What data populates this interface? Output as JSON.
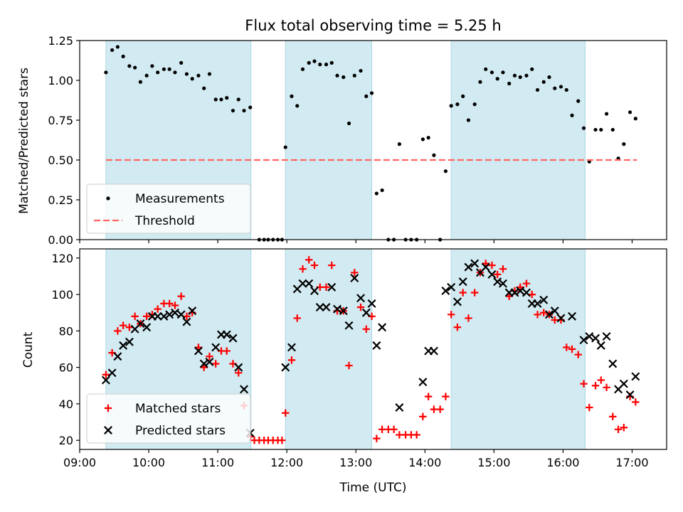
{
  "colors": {
    "band": "#add8e6",
    "measurement": "#000000",
    "threshold": "#ff6666",
    "matched": "#ff0000",
    "predicted": "#000000"
  },
  "chart_data": [
    {
      "type": "scatter",
      "title": "Flux total observing time = 5.25 h",
      "xlabel": "",
      "ylabel": "Matched/Predicted stars",
      "xlim": [
        9.0,
        17.5
      ],
      "ylim": [
        0.0,
        1.25
      ],
      "yticks": [
        0.0,
        0.25,
        0.5,
        0.75,
        1.0,
        1.25
      ],
      "ytick_labels": [
        "0.00",
        "0.25",
        "0.50",
        "0.75",
        "1.00",
        "1.25"
      ],
      "bands": [
        [
          9.38,
          11.48
        ],
        [
          11.98,
          13.23
        ],
        [
          14.38,
          16.32
        ]
      ],
      "legend": {
        "position": "lower-left",
        "entries": [
          "Measurements",
          "Threshold"
        ]
      },
      "series": [
        {
          "name": "Measurements",
          "marker": "dot",
          "x": [
            9.38,
            9.47,
            9.55,
            9.63,
            9.72,
            9.8,
            9.88,
            9.97,
            10.05,
            10.13,
            10.22,
            10.3,
            10.38,
            10.47,
            10.55,
            10.63,
            10.72,
            10.8,
            10.88,
            10.97,
            11.05,
            11.13,
            11.22,
            11.3,
            11.38,
            11.47,
            11.6,
            11.67,
            11.73,
            11.8,
            11.87,
            11.93,
            11.98,
            12.07,
            12.15,
            12.23,
            12.32,
            12.4,
            12.48,
            12.57,
            12.65,
            12.73,
            12.82,
            12.9,
            12.98,
            13.07,
            13.15,
            13.23,
            13.3,
            13.38,
            13.47,
            13.55,
            13.63,
            13.72,
            13.8,
            13.88,
            13.97,
            14.05,
            14.13,
            14.22,
            14.3,
            14.38,
            14.47,
            14.55,
            14.63,
            14.72,
            14.8,
            14.88,
            14.97,
            15.05,
            15.13,
            15.22,
            15.3,
            15.38,
            15.47,
            15.55,
            15.63,
            15.72,
            15.8,
            15.88,
            15.97,
            16.05,
            16.13,
            16.22,
            16.3,
            16.38,
            16.47,
            16.55,
            16.63,
            16.72,
            16.8,
            16.88,
            16.97,
            17.05
          ],
          "y": [
            1.05,
            1.19,
            1.21,
            1.15,
            1.09,
            1.08,
            0.99,
            1.03,
            1.09,
            1.05,
            1.07,
            1.07,
            1.05,
            1.11,
            1.04,
            1.01,
            1.03,
            0.95,
            1.04,
            0.88,
            0.88,
            0.89,
            0.81,
            0.88,
            0.81,
            0.83,
            0.0,
            0.0,
            0.0,
            0.0,
            0.0,
            0.0,
            0.58,
            0.9,
            0.84,
            1.07,
            1.11,
            1.12,
            1.1,
            1.1,
            1.11,
            1.03,
            1.02,
            0.73,
            1.03,
            1.06,
            0.9,
            0.92,
            0.29,
            0.31,
            0.0,
            0.0,
            0.6,
            0.0,
            0.0,
            0.0,
            0.63,
            0.64,
            0.53,
            0.0,
            0.43,
            0.84,
            0.85,
            0.9,
            0.75,
            0.85,
            0.99,
            1.07,
            1.05,
            1.01,
            1.05,
            0.98,
            1.03,
            1.02,
            1.03,
            1.07,
            0.94,
            0.99,
            1.02,
            0.95,
            0.96,
            0.94,
            0.78,
            0.87,
            0.7,
            0.49,
            0.69,
            0.69,
            0.79,
            0.69,
            0.51,
            0.6,
            0.8,
            0.76
          ]
        },
        {
          "name": "Threshold",
          "style": "dashed",
          "x": [
            9.38,
            17.07
          ],
          "y": [
            0.5,
            0.5
          ]
        }
      ]
    },
    {
      "type": "scatter",
      "title": "",
      "xlabel": "Time (UTC)",
      "ylabel": "Count",
      "xlim": [
        9.0,
        17.5
      ],
      "ylim": [
        15,
        125
      ],
      "xticks": [
        9,
        10,
        11,
        12,
        13,
        14,
        15,
        16,
        17
      ],
      "xtick_labels": [
        "09:00",
        "10:00",
        "11:00",
        "12:00",
        "13:00",
        "14:00",
        "15:00",
        "16:00",
        "17:00"
      ],
      "yticks": [
        20,
        40,
        60,
        80,
        100,
        120
      ],
      "ytick_labels": [
        "20",
        "40",
        "60",
        "80",
        "100",
        "120"
      ],
      "bands": [
        [
          9.38,
          11.48
        ],
        [
          11.98,
          13.23
        ],
        [
          14.38,
          16.32
        ]
      ],
      "legend": {
        "position": "lower-left",
        "entries": [
          "Matched stars",
          "Predicted stars"
        ]
      },
      "series": [
        {
          "name": "Matched stars",
          "marker": "plus",
          "x": [
            9.38,
            9.47,
            9.55,
            9.63,
            9.72,
            9.8,
            9.88,
            9.97,
            10.05,
            10.13,
            10.22,
            10.3,
            10.38,
            10.47,
            10.55,
            10.63,
            10.72,
            10.8,
            10.88,
            10.97,
            11.05,
            11.13,
            11.22,
            11.3,
            11.38,
            11.47,
            11.53,
            11.6,
            11.67,
            11.73,
            11.8,
            11.87,
            11.93,
            11.98,
            12.07,
            12.15,
            12.23,
            12.32,
            12.4,
            12.48,
            12.57,
            12.65,
            12.73,
            12.82,
            12.9,
            12.98,
            13.07,
            13.15,
            13.23,
            13.3,
            13.38,
            13.47,
            13.55,
            13.63,
            13.72,
            13.8,
            13.88,
            13.97,
            14.05,
            14.13,
            14.22,
            14.3,
            14.38,
            14.47,
            14.55,
            14.63,
            14.72,
            14.8,
            14.88,
            14.97,
            15.05,
            15.13,
            15.22,
            15.3,
            15.38,
            15.47,
            15.55,
            15.63,
            15.72,
            15.8,
            15.88,
            15.97,
            16.05,
            16.13,
            16.22,
            16.3,
            16.38,
            16.47,
            16.55,
            16.63,
            16.72,
            16.8,
            16.88,
            16.97,
            17.05
          ],
          "y": [
            56,
            68,
            80,
            83,
            82,
            88,
            84,
            88,
            89,
            92,
            95,
            95,
            94,
            99,
            88,
            90,
            71,
            60,
            66,
            62,
            69,
            69,
            62,
            57,
            39,
            22,
            20,
            20,
            20,
            20,
            20,
            20,
            20,
            35,
            64,
            87,
            114,
            119,
            116,
            104,
            104,
            116,
            91,
            91,
            61,
            112,
            93,
            81,
            88,
            21,
            26,
            26,
            26,
            23,
            23,
            23,
            23,
            33,
            44,
            37,
            37,
            44,
            89,
            82,
            101,
            87,
            101,
            112,
            117,
            116,
            111,
            114,
            99,
            102,
            104,
            106,
            100,
            89,
            90,
            89,
            86,
            86,
            71,
            70,
            67,
            51,
            38,
            50,
            53,
            49,
            33,
            26,
            27,
            44,
            41
          ]
        },
        {
          "name": "Predicted stars",
          "marker": "x",
          "x": [
            9.38,
            9.47,
            9.55,
            9.63,
            9.72,
            9.8,
            9.88,
            9.97,
            10.05,
            10.13,
            10.22,
            10.3,
            10.38,
            10.47,
            10.55,
            10.63,
            10.72,
            10.8,
            10.88,
            10.97,
            11.05,
            11.13,
            11.22,
            11.3,
            11.38,
            11.47,
            11.98,
            12.07,
            12.15,
            12.23,
            12.32,
            12.4,
            12.48,
            12.57,
            12.65,
            12.73,
            12.82,
            12.9,
            12.98,
            13.07,
            13.15,
            13.23,
            13.3,
            13.38,
            13.63,
            13.97,
            14.05,
            14.13,
            14.3,
            14.38,
            14.47,
            14.55,
            14.63,
            14.72,
            14.8,
            14.88,
            14.97,
            15.05,
            15.13,
            15.22,
            15.3,
            15.38,
            15.47,
            15.55,
            15.63,
            15.72,
            15.8,
            15.88,
            15.97,
            16.13,
            16.3,
            16.38,
            16.47,
            16.55,
            16.63,
            16.72,
            16.8,
            16.88,
            16.97,
            17.05
          ],
          "y": [
            53,
            57,
            66,
            72,
            74,
            81,
            84,
            82,
            88,
            88,
            88,
            89,
            90,
            89,
            85,
            91,
            69,
            62,
            63,
            71,
            78,
            78,
            76,
            60,
            48,
            24,
            60,
            71,
            103,
            106,
            106,
            102,
            93,
            93,
            104,
            92,
            91,
            83,
            109,
            98,
            90,
            95,
            72,
            82,
            38,
            52,
            69,
            69,
            102,
            104,
            96,
            107,
            115,
            117,
            112,
            115,
            111,
            107,
            106,
            101,
            101,
            102,
            101,
            95,
            95,
            97,
            89,
            91,
            87,
            88,
            75,
            77,
            76,
            72,
            77,
            62,
            48,
            51,
            45,
            55
          ]
        }
      ]
    }
  ]
}
